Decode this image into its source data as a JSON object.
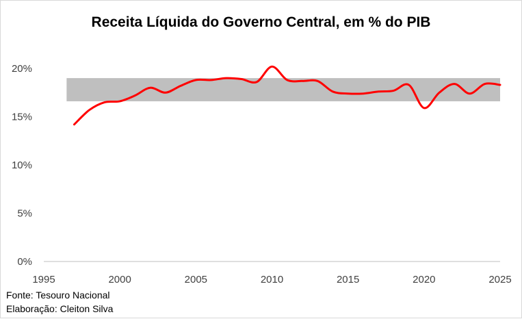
{
  "chart_data": {
    "type": "line",
    "title": "Receita Líquida do Governo Central, em % do PIB",
    "xlabel": "",
    "ylabel": "",
    "xlim": [
      1995,
      2025
    ],
    "ylim": [
      0,
      20
    ],
    "x_ticks": [
      "1995",
      "2000",
      "2005",
      "2010",
      "2015",
      "2020",
      "2025"
    ],
    "y_ticks": [
      "0%",
      "5%",
      "10%",
      "15%",
      "20%"
    ],
    "band": {
      "from": 16.6,
      "to": 19.0,
      "x_from": 1996.5,
      "x_to": 2025,
      "color": "#bfbfbf"
    },
    "series": [
      {
        "color": "#ff0000",
        "x": [
          1997,
          1998,
          1999,
          2000,
          2001,
          2002,
          2003,
          2004,
          2005,
          2006,
          2007,
          2008,
          2009,
          2010,
          2011,
          2012,
          2013,
          2014,
          2015,
          2016,
          2017,
          2018,
          2019,
          2020,
          2021,
          2022,
          2023,
          2024,
          2025
        ],
        "values": [
          14.2,
          15.7,
          16.5,
          16.6,
          17.2,
          18.0,
          17.5,
          18.2,
          18.8,
          18.8,
          19.0,
          18.9,
          18.6,
          20.2,
          18.8,
          18.7,
          18.7,
          17.6,
          17.4,
          17.4,
          17.6,
          17.7,
          18.3,
          15.9,
          17.5,
          18.4,
          17.4,
          18.4,
          18.3
        ]
      }
    ]
  },
  "footer": {
    "source": "Fonte: Tesouro Nacional",
    "author": "Elaboração: Cleiton Silva"
  }
}
